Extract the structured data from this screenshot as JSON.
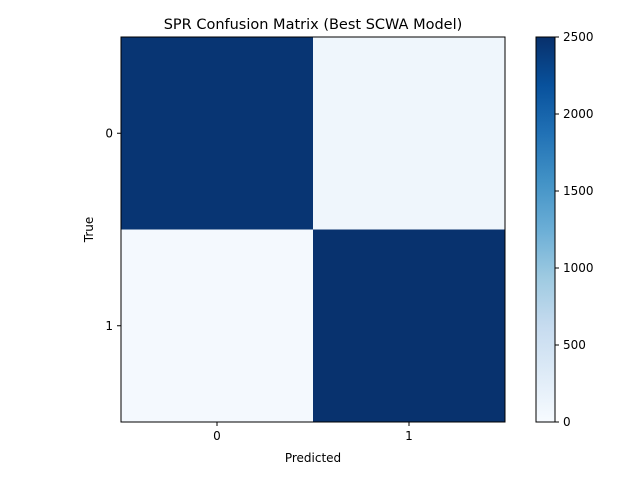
{
  "chart_data": {
    "type": "heatmap",
    "title": "SPR Confusion Matrix (Best SCWA Model)",
    "xlabel": "Predicted",
    "ylabel": "True",
    "x_categories": [
      "0",
      "1"
    ],
    "y_categories": [
      "0",
      "1"
    ],
    "values": [
      [
        2450,
        100
      ],
      [
        40,
        2480
      ]
    ],
    "colorbar": {
      "min": 0,
      "max": 2500,
      "ticks": [
        0,
        500,
        1000,
        1500,
        2000,
        2500
      ],
      "tick_labels": [
        "0",
        "500",
        "1000",
        "1500",
        "2000",
        "2500"
      ],
      "colormap": "Blues",
      "color_stops": [
        "#f7fbff",
        "#deebf7",
        "#c6dbef",
        "#9ecae1",
        "#6baed6",
        "#4292c6",
        "#2171b5",
        "#08519c",
        "#08306b"
      ]
    }
  }
}
